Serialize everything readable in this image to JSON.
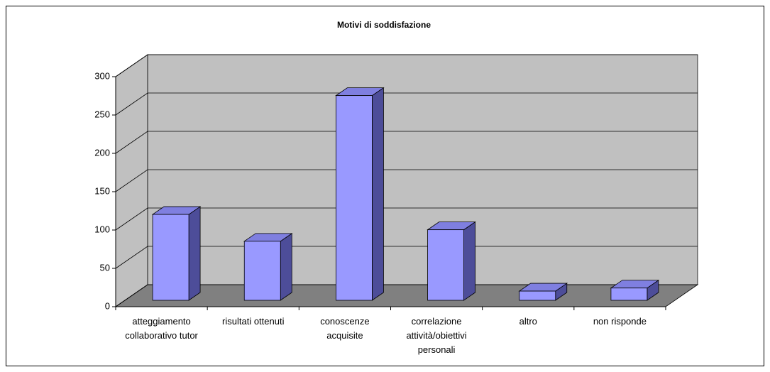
{
  "chart_data": {
    "type": "bar3d",
    "title": "Motivi di soddisfazione",
    "categories": [
      "atteggiamento collaborativo tutor",
      "risultati ottenuti",
      "conoscenze acquisite",
      "correlazione attività/obiettivi personali",
      "altro",
      "non risponde"
    ],
    "values": [
      112,
      77,
      267,
      92,
      12,
      16
    ],
    "color": "#9999ff",
    "ylim": [
      0,
      300
    ],
    "yticks": [
      0,
      50,
      100,
      150,
      200,
      250,
      300
    ],
    "grid": true
  }
}
